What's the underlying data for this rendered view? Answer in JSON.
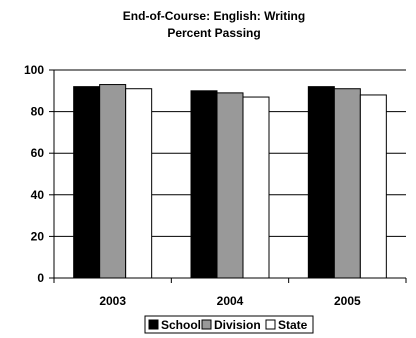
{
  "chart_data": {
    "type": "bar",
    "title": "End-of-Course:  English: Writing",
    "subtitle": "Percent Passing",
    "categories": [
      "2003",
      "2004",
      "2005"
    ],
    "series": [
      {
        "name": "School",
        "values": [
          92,
          90,
          92
        ],
        "color": "#000000"
      },
      {
        "name": "Division",
        "values": [
          93,
          89,
          91
        ],
        "color": "#999999"
      },
      {
        "name": "State",
        "values": [
          91,
          87,
          88
        ],
        "color": "#ffffff"
      }
    ],
    "ylim": [
      0,
      100
    ],
    "yticks": [
      0,
      20,
      40,
      60,
      80,
      100
    ],
    "grid": true,
    "legend_position": "bottom"
  }
}
